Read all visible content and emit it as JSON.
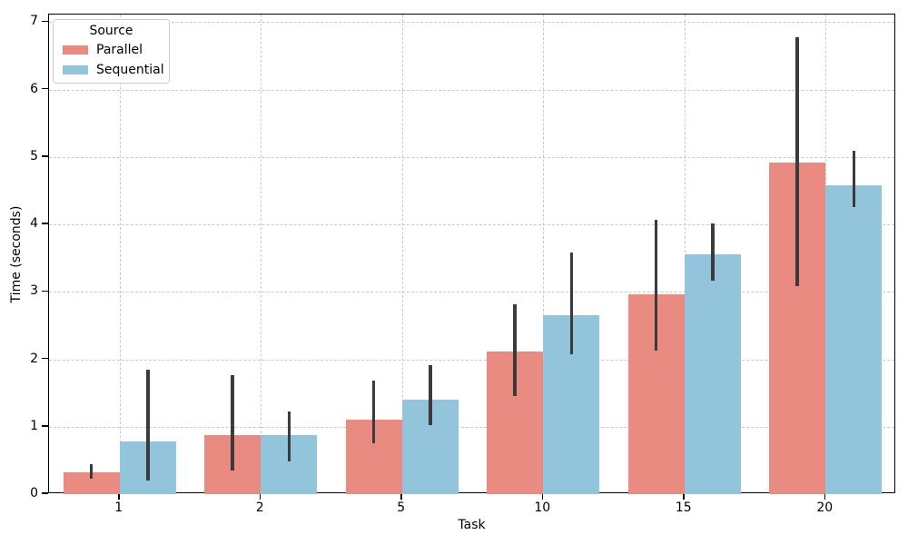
{
  "chart_data": {
    "type": "bar",
    "orientation": "vertical",
    "grouped": true,
    "categories": [
      "1",
      "2",
      "5",
      "10",
      "15",
      "20"
    ],
    "series": [
      {
        "name": "Parallel",
        "color": "#e98b80",
        "values": [
          0.33,
          0.87,
          1.1,
          2.12,
          2.96,
          4.91
        ],
        "error_low": [
          0.23,
          0.35,
          0.76,
          1.45,
          2.13,
          3.08
        ],
        "error_high": [
          0.44,
          1.76,
          1.68,
          2.81,
          4.07,
          6.78
        ]
      },
      {
        "name": "Sequential",
        "color": "#92c5dc",
        "values": [
          0.78,
          0.88,
          1.4,
          2.66,
          3.55,
          4.58
        ],
        "error_low": [
          0.2,
          0.49,
          1.03,
          2.08,
          3.16,
          4.26
        ],
        "error_high": [
          1.85,
          1.23,
          1.91,
          3.58,
          4.01,
          5.09
        ]
      }
    ],
    "title": "",
    "xlabel": "Task",
    "ylabel": "Time (seconds)",
    "ylim": [
      0,
      7.112
    ],
    "yticks": [
      0,
      1,
      2,
      3,
      4,
      5,
      6,
      7
    ],
    "grid": true,
    "grid_style": "dashed",
    "legend_title": "Source",
    "legend_position": "upper left",
    "error_color": "#3b3b3b",
    "background_color": "#ffffff",
    "spine_color": "#000000"
  }
}
